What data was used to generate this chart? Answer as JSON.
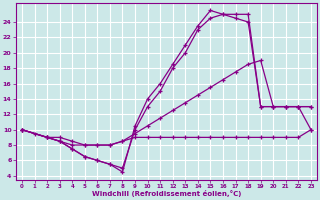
{
  "xlabel": "Windchill (Refroidissement éolien,°C)",
  "bg_color": "#cce8e8",
  "grid_color": "#ffffff",
  "line_color": "#880088",
  "xlim": [
    -0.5,
    23.5
  ],
  "ylim": [
    3.5,
    26.5
  ],
  "xticks": [
    0,
    1,
    2,
    3,
    4,
    5,
    6,
    7,
    8,
    9,
    10,
    11,
    12,
    13,
    14,
    15,
    16,
    17,
    18,
    19,
    20,
    21,
    22,
    23
  ],
  "yticks": [
    4,
    6,
    8,
    10,
    12,
    14,
    16,
    18,
    20,
    22,
    24
  ],
  "lines": [
    {
      "x": [
        0,
        1,
        2,
        3,
        4,
        5,
        6,
        7,
        8,
        9,
        10,
        11,
        12,
        13,
        14,
        15,
        16,
        17,
        18,
        19,
        20,
        21,
        22,
        23
      ],
      "y": [
        10,
        9.5,
        9,
        9,
        8.5,
        8,
        8,
        8,
        8.5,
        9,
        9,
        9,
        9,
        9,
        9,
        9,
        9,
        9,
        9,
        9,
        9,
        9,
        9,
        10
      ]
    },
    {
      "x": [
        0,
        2,
        3,
        4,
        5,
        6,
        7,
        8,
        9,
        10,
        11,
        12,
        13,
        14,
        15,
        16,
        17,
        18,
        19,
        20,
        21,
        22,
        23
      ],
      "y": [
        10,
        9,
        8.5,
        7.5,
        6.5,
        6,
        5.5,
        4.5,
        10.5,
        14,
        16,
        18.5,
        21,
        23.5,
        25.5,
        25,
        25,
        25,
        13,
        13,
        13,
        13,
        13
      ]
    },
    {
      "x": [
        0,
        2,
        3,
        4,
        5,
        6,
        7,
        8,
        9,
        10,
        11,
        12,
        13,
        14,
        15,
        16,
        17,
        18,
        19,
        20,
        21,
        22,
        23
      ],
      "y": [
        10,
        9,
        8.5,
        7.5,
        6.5,
        6,
        5.5,
        5,
        10,
        13,
        15,
        18,
        20,
        23,
        24.5,
        25,
        24.5,
        24,
        13,
        13,
        13,
        13,
        13
      ]
    },
    {
      "x": [
        0,
        2,
        3,
        4,
        5,
        6,
        7,
        8,
        9,
        10,
        11,
        12,
        13,
        14,
        15,
        16,
        17,
        18,
        19,
        20,
        21,
        22,
        23
      ],
      "y": [
        10,
        9,
        8.5,
        8,
        8,
        8,
        8,
        8.5,
        9.5,
        10.5,
        11.5,
        12.5,
        13.5,
        14.5,
        15.5,
        16.5,
        17.5,
        18.5,
        19,
        13,
        13,
        13,
        10
      ]
    }
  ]
}
